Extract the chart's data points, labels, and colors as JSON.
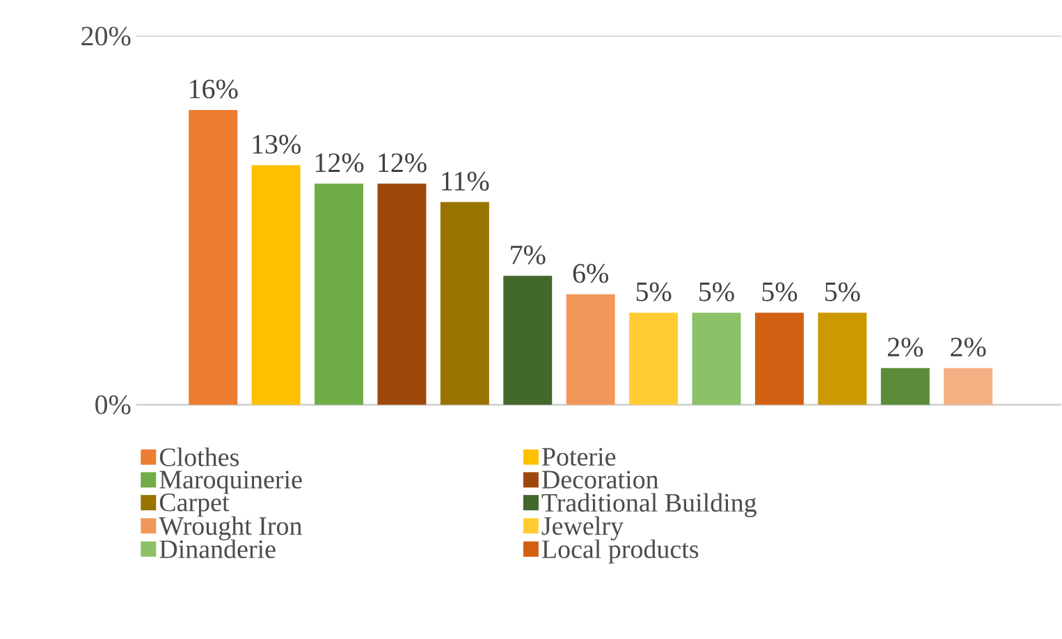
{
  "chart_data": {
    "type": "bar",
    "categories": [
      null,
      null,
      null,
      null,
      null,
      null,
      null,
      null,
      null,
      null,
      null,
      null,
      null
    ],
    "series": [
      {
        "name": "Clothes",
        "color": "#ed7d31",
        "values": [
          16,
          null,
          null,
          null,
          null,
          null,
          null,
          null,
          null,
          null,
          null,
          null,
          null
        ],
        "value_labels": [
          "16%",
          null,
          null,
          null,
          null,
          null,
          null,
          null,
          null,
          null,
          null,
          null,
          null
        ]
      },
      {
        "name": "Poterie",
        "color": "#ffc000",
        "values": [
          null,
          13,
          null,
          null,
          null,
          null,
          null,
          null,
          null,
          null,
          null,
          null,
          null
        ],
        "value_labels": [
          null,
          "13%",
          null,
          null,
          null,
          null,
          null,
          null,
          null,
          null,
          null,
          null,
          null
        ]
      },
      {
        "name": "Maroquinerie",
        "color": "#70ad47",
        "values": [
          null,
          null,
          12,
          null,
          null,
          null,
          null,
          null,
          null,
          null,
          null,
          null,
          null
        ],
        "value_labels": [
          null,
          null,
          "12%",
          null,
          null,
          null,
          null,
          null,
          null,
          null,
          null,
          null,
          null
        ]
      },
      {
        "name": "Decoration",
        "color": "#9e480e",
        "values": [
          null,
          null,
          null,
          12,
          null,
          null,
          null,
          null,
          null,
          null,
          null,
          null,
          null
        ],
        "value_labels": [
          null,
          null,
          null,
          "12%",
          null,
          null,
          null,
          null,
          null,
          null,
          null,
          null,
          null
        ]
      },
      {
        "name": "Carpet",
        "color": "#997300",
        "values": [
          null,
          null,
          null,
          null,
          11,
          null,
          null,
          null,
          null,
          null,
          null,
          null,
          null
        ],
        "value_labels": [
          null,
          null,
          null,
          null,
          "11%",
          null,
          null,
          null,
          null,
          null,
          null,
          null,
          null
        ]
      },
      {
        "name": "Traditional Building",
        "color": "#43682b",
        "values": [
          null,
          null,
          null,
          null,
          null,
          7,
          null,
          null,
          null,
          null,
          null,
          null,
          null
        ],
        "value_labels": [
          null,
          null,
          null,
          null,
          null,
          "7%",
          null,
          null,
          null,
          null,
          null,
          null,
          null
        ]
      },
      {
        "name": "Wrought Iron",
        "color": "#f1975a",
        "values": [
          null,
          null,
          null,
          null,
          null,
          null,
          6,
          null,
          null,
          null,
          null,
          null,
          null
        ],
        "value_labels": [
          null,
          null,
          null,
          null,
          null,
          null,
          "6%",
          null,
          null,
          null,
          null,
          null,
          null
        ]
      },
      {
        "name": "Jewelry",
        "color": "#ffcd33",
        "values": [
          null,
          null,
          null,
          null,
          null,
          null,
          null,
          5,
          null,
          null,
          null,
          null,
          null
        ],
        "value_labels": [
          null,
          null,
          null,
          null,
          null,
          null,
          null,
          "5%",
          null,
          null,
          null,
          null,
          null
        ]
      },
      {
        "name": "Dinanderie",
        "color": "#8cc168",
        "values": [
          null,
          null,
          null,
          null,
          null,
          null,
          null,
          null,
          5,
          null,
          null,
          null,
          null
        ],
        "value_labels": [
          null,
          null,
          null,
          null,
          null,
          null,
          null,
          null,
          "5%",
          null,
          null,
          null,
          null
        ]
      },
      {
        "name": "Local products",
        "color": "#d26012",
        "values": [
          null,
          null,
          null,
          null,
          null,
          null,
          null,
          null,
          null,
          5,
          null,
          null,
          null
        ],
        "value_labels": [
          null,
          null,
          null,
          null,
          null,
          null,
          null,
          null,
          null,
          "5%",
          null,
          null,
          null
        ]
      },
      {
        "color": "#cc9a00",
        "values": [
          null,
          null,
          null,
          null,
          null,
          null,
          null,
          null,
          null,
          null,
          5,
          null,
          null
        ],
        "value_labels": [
          null,
          null,
          null,
          null,
          null,
          null,
          null,
          null,
          null,
          null,
          "5%",
          null,
          null
        ]
      },
      {
        "color": "#5b8c3a",
        "values": [
          null,
          null,
          null,
          null,
          null,
          null,
          null,
          null,
          null,
          null,
          null,
          2,
          null
        ],
        "value_labels": [
          null,
          null,
          null,
          null,
          null,
          null,
          null,
          null,
          null,
          null,
          null,
          "2%",
          null
        ]
      },
      {
        "color": "#f4b183",
        "values": [
          null,
          null,
          null,
          null,
          null,
          null,
          null,
          null,
          null,
          null,
          null,
          null,
          2
        ],
        "value_labels": [
          null,
          null,
          null,
          null,
          null,
          null,
          null,
          null,
          null,
          null,
          null,
          null,
          "2%"
        ]
      }
    ],
    "ylim": [
      0,
      20
    ],
    "yticks": [
      {
        "value": 0,
        "label": "0%"
      },
      {
        "value": 20,
        "label": "20%"
      }
    ],
    "stacked": true,
    "grid": "y",
    "legend": "bottom"
  }
}
